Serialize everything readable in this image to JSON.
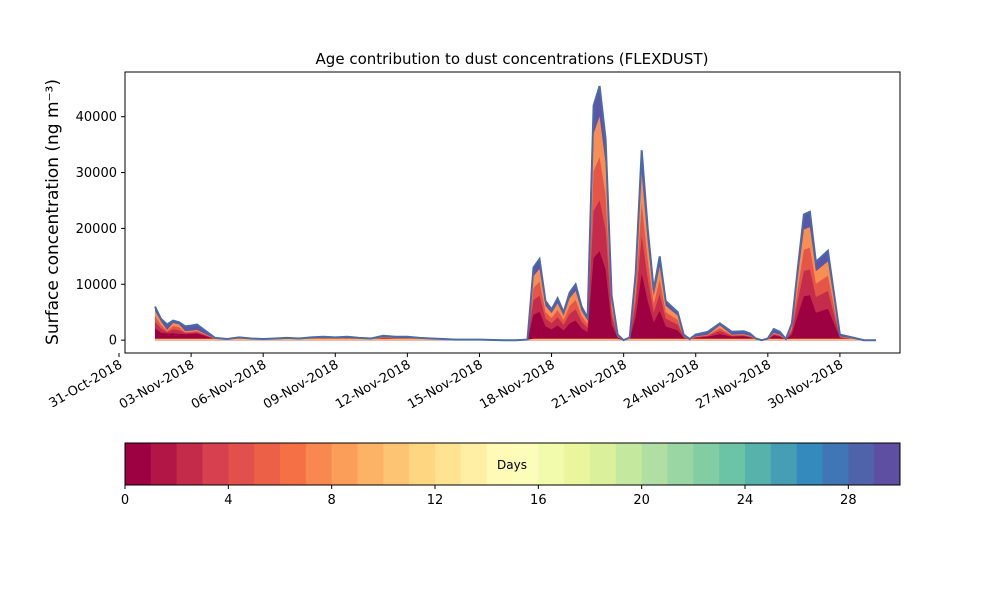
{
  "chart_data": {
    "type": "area",
    "title": "Age contribution to dust concentrations (FLEXDUST)",
    "ylabel": "Surface concentration (ng m⁻³)",
    "xlabel": "",
    "ylim": [
      -2300,
      48000
    ],
    "xlim": [
      "2018-10-31T06:00",
      "2018-12-02T12:00"
    ],
    "yticks": [
      0,
      10000,
      20000,
      30000,
      40000
    ],
    "xticks": [
      "31-Oct-2018",
      "03-Nov-2018",
      "06-Nov-2018",
      "09-Nov-2018",
      "12-Nov-2018",
      "15-Nov-2018",
      "18-Nov-2018",
      "21-Nov-2018",
      "24-Nov-2018",
      "27-Nov-2018",
      "30-Nov-2018"
    ],
    "grid": false,
    "series_total": {
      "x": [
        "2018-11-01T12:00",
        "2018-11-01T18:00",
        "2018-11-02T00:00",
        "2018-11-02T06:00",
        "2018-11-02T12:00",
        "2018-11-02T18:00",
        "2018-11-03T00:00",
        "2018-11-03T06:00",
        "2018-11-03T12:00",
        "2018-11-04T00:00",
        "2018-11-04T12:00",
        "2018-11-05T00:00",
        "2018-11-05T12:00",
        "2018-11-06T00:00",
        "2018-11-06T12:00",
        "2018-11-07T00:00",
        "2018-11-07T12:00",
        "2018-11-08T00:00",
        "2018-11-08T12:00",
        "2018-11-09T00:00",
        "2018-11-09T12:00",
        "2018-11-10T00:00",
        "2018-11-10T12:00",
        "2018-11-11T00:00",
        "2018-11-11T12:00",
        "2018-11-12T00:00",
        "2018-11-12T12:00",
        "2018-11-13T00:00",
        "2018-11-13T12:00",
        "2018-11-14T00:00",
        "2018-11-15T00:00",
        "2018-11-16T00:00",
        "2018-11-16T12:00",
        "2018-11-17T00:00",
        "2018-11-17T06:00",
        "2018-11-17T12:00",
        "2018-11-17T18:00",
        "2018-11-18T00:00",
        "2018-11-18T06:00",
        "2018-11-18T12:00",
        "2018-11-18T18:00",
        "2018-11-19T00:00",
        "2018-11-19T06:00",
        "2018-11-19T12:00",
        "2018-11-19T18:00",
        "2018-11-20T00:00",
        "2018-11-20T06:00",
        "2018-11-20T12:00",
        "2018-11-20T18:00",
        "2018-11-21T00:00",
        "2018-11-21T06:00",
        "2018-11-21T12:00",
        "2018-11-21T18:00",
        "2018-11-22T00:00",
        "2018-11-22T06:00",
        "2018-11-22T12:00",
        "2018-11-22T18:00",
        "2018-11-23T00:00",
        "2018-11-23T06:00",
        "2018-11-23T12:00",
        "2018-11-23T18:00",
        "2018-11-24T00:00",
        "2018-11-24T12:00",
        "2018-11-25T00:00",
        "2018-11-25T12:00",
        "2018-11-26T00:00",
        "2018-11-26T06:00",
        "2018-11-26T12:00",
        "2018-11-26T18:00",
        "2018-11-27T00:00",
        "2018-11-27T06:00",
        "2018-11-27T12:00",
        "2018-11-27T18:00",
        "2018-11-28T00:00",
        "2018-11-28T06:00",
        "2018-11-28T12:00",
        "2018-11-28T18:00",
        "2018-11-29T00:00",
        "2018-11-29T12:00",
        "2018-11-30T00:00",
        "2018-11-30T12:00",
        "2018-12-01T00:00",
        "2018-12-01T12:00"
      ],
      "values": [
        6000,
        3800,
        2800,
        3500,
        3200,
        2500,
        2600,
        2800,
        2000,
        400,
        200,
        500,
        300,
        200,
        300,
        400,
        300,
        500,
        600,
        500,
        600,
        400,
        300,
        800,
        600,
        600,
        400,
        300,
        200,
        100,
        100,
        0,
        0,
        100,
        13000,
        14500,
        7000,
        5500,
        7500,
        5000,
        8500,
        10000,
        6000,
        4000,
        42000,
        45500,
        36000,
        8000,
        1000,
        0,
        500,
        12000,
        34000,
        20000,
        9000,
        15000,
        7000,
        6000,
        5000,
        1000,
        200,
        1000,
        1500,
        3000,
        1500,
        1600,
        1200,
        300,
        0,
        300,
        2000,
        1500,
        200,
        3000,
        13000,
        22500,
        23000,
        14000,
        16000,
        1000,
        500,
        0,
        0
      ]
    },
    "colorbar": {
      "label": "Days",
      "range": [
        0,
        30
      ],
      "ticks": [
        0,
        4,
        8,
        12,
        16,
        20,
        24,
        28
      ],
      "n_bins": 30
    }
  }
}
